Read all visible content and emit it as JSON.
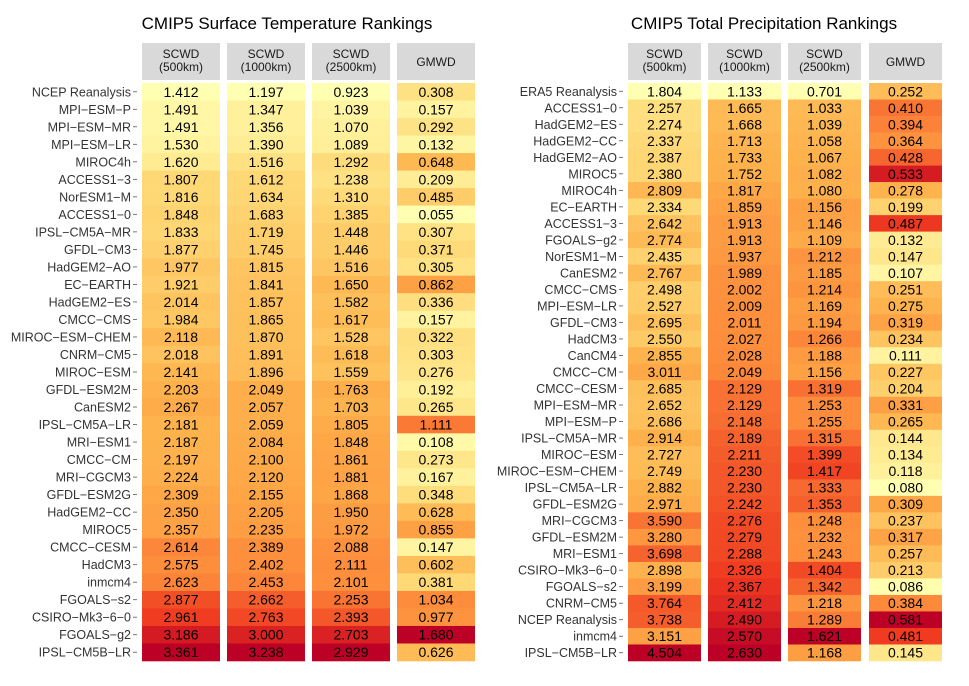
{
  "chart_data": [
    {
      "type": "heatmap",
      "title": "CMIP5 Surface Temperature Rankings",
      "columns": [
        "SCWD\n(500km)",
        "SCWD\n(1000km)",
        "SCWD\n(2500km)",
        "GMWD"
      ],
      "rows": [
        "NCEP Reanalysis",
        "MPI−ESM−P",
        "MPI−ESM−MR",
        "MPI−ESM−LR",
        "MIROC4h",
        "ACCESS1−3",
        "NorESM1−M",
        "ACCESS1−0",
        "IPSL−CM5A−MR",
        "GFDL−CM3",
        "HadGEM2−AO",
        "EC−EARTH",
        "HadGEM2−ES",
        "CMCC−CMS",
        "MIROC−ESM−CHEM",
        "CNRM−CM5",
        "MIROC−ESM",
        "GFDL−ESM2M",
        "CanESM2",
        "IPSL−CM5A−LR",
        "MRI−ESM1",
        "CMCC−CM",
        "MRI−CGCM3",
        "GFDL−ESM2G",
        "HadGEM2−CC",
        "MIROC5",
        "CMCC−CESM",
        "HadCM3",
        "inmcm4",
        "FGOALS−s2",
        "CSIRO−Mk3−6−0",
        "FGOALS−g2",
        "IPSL−CM5B−LR"
      ],
      "values": [
        [
          1.412,
          1.197,
          0.923,
          0.308
        ],
        [
          1.491,
          1.347,
          1.039,
          0.157
        ],
        [
          1.491,
          1.356,
          1.07,
          0.292
        ],
        [
          1.53,
          1.39,
          1.089,
          0.132
        ],
        [
          1.62,
          1.516,
          1.292,
          0.648
        ],
        [
          1.807,
          1.612,
          1.238,
          0.209
        ],
        [
          1.816,
          1.634,
          1.31,
          0.485
        ],
        [
          1.848,
          1.683,
          1.385,
          0.055
        ],
        [
          1.833,
          1.719,
          1.448,
          0.307
        ],
        [
          1.877,
          1.745,
          1.446,
          0.371
        ],
        [
          1.977,
          1.815,
          1.516,
          0.305
        ],
        [
          1.921,
          1.841,
          1.65,
          0.862
        ],
        [
          2.014,
          1.857,
          1.582,
          0.336
        ],
        [
          1.984,
          1.865,
          1.617,
          0.157
        ],
        [
          2.118,
          1.87,
          1.528,
          0.322
        ],
        [
          2.018,
          1.891,
          1.618,
          0.303
        ],
        [
          2.141,
          1.896,
          1.559,
          0.276
        ],
        [
          2.203,
          2.049,
          1.763,
          0.192
        ],
        [
          2.267,
          2.057,
          1.703,
          0.265
        ],
        [
          2.181,
          2.059,
          1.805,
          1.111
        ],
        [
          2.187,
          2.084,
          1.848,
          0.108
        ],
        [
          2.197,
          2.1,
          1.861,
          0.273
        ],
        [
          2.224,
          2.12,
          1.881,
          0.167
        ],
        [
          2.309,
          2.155,
          1.868,
          0.348
        ],
        [
          2.35,
          2.205,
          1.95,
          0.628
        ],
        [
          2.357,
          2.235,
          1.972,
          0.855
        ],
        [
          2.614,
          2.389,
          2.088,
          0.147
        ],
        [
          2.575,
          2.402,
          2.111,
          0.602
        ],
        [
          2.623,
          2.453,
          2.101,
          0.381
        ],
        [
          2.877,
          2.662,
          2.253,
          1.034
        ],
        [
          2.961,
          2.763,
          2.393,
          0.977
        ],
        [
          3.186,
          3.0,
          2.703,
          1.68
        ],
        [
          3.361,
          3.238,
          2.929,
          0.626
        ]
      ]
    },
    {
      "type": "heatmap",
      "title": "CMIP5 Total Precipitation Rankings",
      "columns": [
        "SCWD\n(500km)",
        "SCWD\n(1000km)",
        "SCWD\n(2500km)",
        "GMWD"
      ],
      "rows": [
        "ERA5 Reanalysis",
        "ACCESS1−0",
        "HadGEM2−ES",
        "HadGEM2−CC",
        "HadGEM2−AO",
        "MIROC5",
        "MIROC4h",
        "EC−EARTH",
        "ACCESS1−3",
        "FGOALS−g2",
        "NorESM1−M",
        "CanESM2",
        "CMCC−CMS",
        "MPI−ESM−LR",
        "GFDL−CM3",
        "HadCM3",
        "CanCM4",
        "CMCC−CM",
        "CMCC−CESM",
        "MPI−ESM−MR",
        "MPI−ESM−P",
        "IPSL−CM5A−MR",
        "MIROC−ESM",
        "MIROC−ESM−CHEM",
        "IPSL−CM5A−LR",
        "GFDL−ESM2G",
        "MRI−CGCM3",
        "GFDL−ESM2M",
        "MRI−ESM1",
        "CSIRO−Mk3−6−0",
        "FGOALS−s2",
        "CNRM−CM5",
        "NCEP Reanalysis",
        "inmcm4",
        "IPSL−CM5B−LR"
      ],
      "values": [
        [
          1.804,
          1.133,
          0.701,
          0.252
        ],
        [
          2.257,
          1.665,
          1.033,
          0.41
        ],
        [
          2.274,
          1.668,
          1.039,
          0.394
        ],
        [
          2.337,
          1.713,
          1.058,
          0.364
        ],
        [
          2.387,
          1.733,
          1.067,
          0.428
        ],
        [
          2.38,
          1.752,
          1.082,
          0.533
        ],
        [
          2.809,
          1.817,
          1.08,
          0.278
        ],
        [
          2.334,
          1.859,
          1.156,
          0.199
        ],
        [
          2.642,
          1.913,
          1.146,
          0.487
        ],
        [
          2.774,
          1.913,
          1.109,
          0.132
        ],
        [
          2.435,
          1.937,
          1.212,
          0.147
        ],
        [
          2.767,
          1.989,
          1.185,
          0.107
        ],
        [
          2.498,
          2.002,
          1.214,
          0.251
        ],
        [
          2.527,
          2.009,
          1.169,
          0.275
        ],
        [
          2.695,
          2.011,
          1.194,
          0.319
        ],
        [
          2.55,
          2.027,
          1.266,
          0.234
        ],
        [
          2.855,
          2.028,
          1.188,
          0.111
        ],
        [
          3.011,
          2.049,
          1.156,
          0.227
        ],
        [
          2.685,
          2.129,
          1.319,
          0.204
        ],
        [
          2.652,
          2.129,
          1.253,
          0.331
        ],
        [
          2.686,
          2.148,
          1.255,
          0.265
        ],
        [
          2.914,
          2.189,
          1.315,
          0.144
        ],
        [
          2.727,
          2.211,
          1.399,
          0.134
        ],
        [
          2.749,
          2.23,
          1.417,
          0.118
        ],
        [
          2.882,
          2.23,
          1.333,
          0.08
        ],
        [
          2.971,
          2.242,
          1.353,
          0.309
        ],
        [
          3.59,
          2.276,
          1.248,
          0.237
        ],
        [
          3.28,
          2.279,
          1.232,
          0.317
        ],
        [
          3.698,
          2.288,
          1.243,
          0.257
        ],
        [
          2.898,
          2.326,
          1.404,
          0.213
        ],
        [
          3.199,
          2.367,
          1.342,
          0.086
        ],
        [
          3.764,
          2.412,
          1.218,
          0.384
        ],
        [
          3.738,
          2.49,
          1.289,
          0.581
        ],
        [
          3.151,
          2.57,
          1.621,
          0.481
        ],
        [
          4.504,
          2.63,
          1.168,
          0.145
        ]
      ]
    }
  ]
}
